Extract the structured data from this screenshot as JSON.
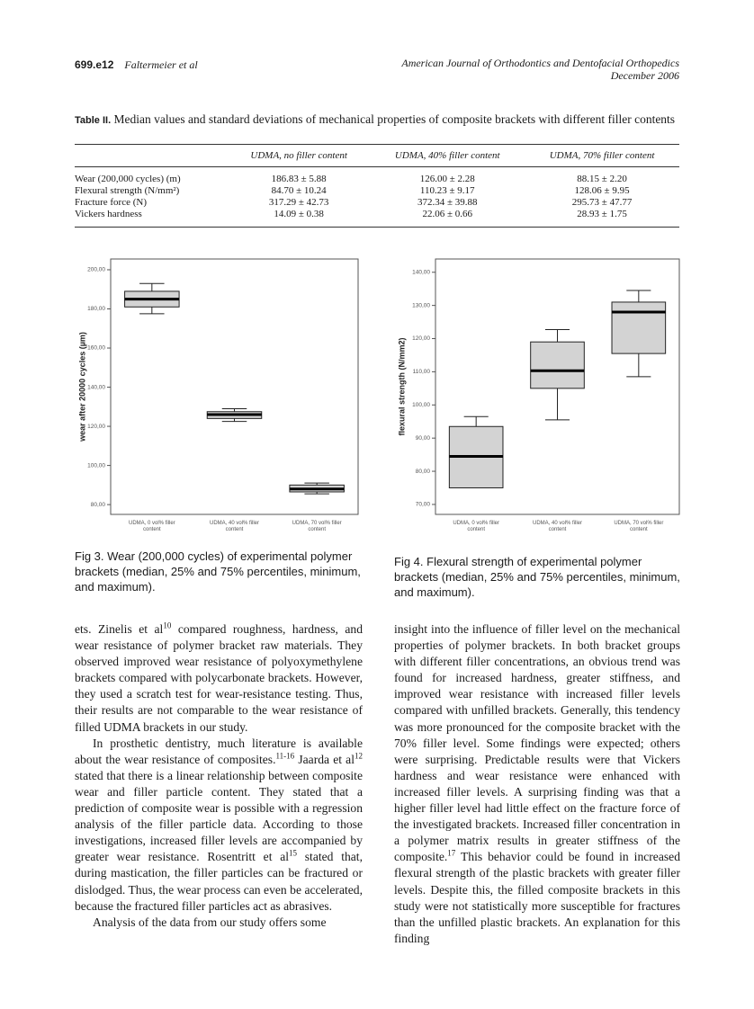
{
  "header": {
    "page": "699.e12",
    "authors": "Faltermeier et al",
    "journal": "American Journal of Orthodontics and Dentofacial Orthopedics",
    "date": "December 2006"
  },
  "table": {
    "label": "Table II.",
    "title": "Median values and standard deviations of mechanical properties of composite brackets with different filler contents",
    "columns": [
      "UDMA, no filler content",
      "UDMA, 40% filler content",
      "UDMA, 70% filler content"
    ],
    "rows": [
      {
        "label": "Wear (200,000 cycles) (m)",
        "cells": [
          "186.83 ± 5.88",
          "126.00 ± 2.28",
          "88.15 ± 2.20"
        ]
      },
      {
        "label": "Flexural strength (N/mm²)",
        "cells": [
          "84.70 ± 10.24",
          "110.23 ± 9.17",
          "128.06 ± 9.95"
        ]
      },
      {
        "label": "Fracture force (N)",
        "cells": [
          "317.29 ± 42.73",
          "372.34 ± 39.88",
          "295.73 ± 47.77"
        ]
      },
      {
        "label": "Vickers hardness",
        "cells": [
          "14.09 ± 0.38",
          "22.06 ± 0.66",
          "28.93 ± 1.75"
        ]
      }
    ]
  },
  "chart_data": [
    {
      "type": "box",
      "ylabel": "wear after 20000 cycles (µm)",
      "box_color": "#d3d3d3",
      "categories": [
        [
          "UDMA, 0 vol% filler",
          "content"
        ],
        [
          "UDMA, 40 vol% filler",
          "content"
        ],
        [
          "UDMA, 70 vol% filler",
          "content"
        ]
      ],
      "boxes": [
        {
          "min": 177.5,
          "q1": 181,
          "median": 185,
          "q3": 189,
          "max": 193
        },
        {
          "min": 122.5,
          "q1": 124,
          "median": 126,
          "q3": 127.5,
          "max": 129
        },
        {
          "min": 85.5,
          "q1": 86.5,
          "median": 88,
          "q3": 90,
          "max": 91
        }
      ],
      "ylim": [
        75,
        205.5
      ],
      "yticks": [
        {
          "value": 80,
          "label": "80,00"
        },
        {
          "value": 100,
          "label": "100,00"
        },
        {
          "value": 120,
          "label": "120,00"
        },
        {
          "value": 140,
          "label": "140,00"
        },
        {
          "value": 160,
          "label": "160,00"
        },
        {
          "value": 180,
          "label": "180,00"
        },
        {
          "value": 200,
          "label": "200,00"
        }
      ]
    },
    {
      "type": "box",
      "ylabel": "flexural strength (N/mm2)",
      "box_color": "#d3d3d3",
      "categories": [
        [
          "UDMA, 0 vol% filler",
          "content"
        ],
        [
          "UDMA, 40 vol% filler",
          "content"
        ],
        [
          "UDMA, 70 vol% filler",
          "content"
        ]
      ],
      "boxes": [
        {
          "min": 75,
          "q1": 75,
          "median": 84.5,
          "q3": 93.5,
          "max": 96.5
        },
        {
          "min": 95.5,
          "q1": 105,
          "median": 110.3,
          "q3": 119,
          "max": 122.7
        },
        {
          "min": 108.5,
          "q1": 115.5,
          "median": 128,
          "q3": 131,
          "max": 134.5
        }
      ],
      "ylim": [
        67,
        144
      ],
      "yticks": [
        {
          "value": 70,
          "label": "70,00"
        },
        {
          "value": 80,
          "label": "80,00"
        },
        {
          "value": 90,
          "label": "90,00"
        },
        {
          "value": 100,
          "label": "100,00"
        },
        {
          "value": 110,
          "label": "110,00"
        },
        {
          "value": 120,
          "label": "120,00"
        },
        {
          "value": 130,
          "label": "130,00"
        },
        {
          "value": 140,
          "label": "140,00"
        }
      ]
    }
  ],
  "figures": [
    {
      "label": "Fig 3.",
      "caption": "Wear (200,000 cycles) of experimental polymer brackets (median, 25% and 75% percentiles, minimum, and maximum)."
    },
    {
      "label": "Fig 4.",
      "caption": "Flexural strength of experimental polymer brackets (median, 25% and 75% percentiles, minimum, and maximum)."
    }
  ],
  "body": [
    [
      {
        "parts": [
          {
            "text": "ets. Zinelis et al"
          },
          {
            "sup": "10"
          },
          {
            "text": " compared roughness, hardness, and wear resistance of polymer bracket raw materials. They observed improved wear resistance of polyoxymethylene brackets compared with polycarbonate brackets. However, they used a scratch test for wear-resistance testing. Thus, their results are not comparable to the wear resistance of filled UDMA brackets in our study."
          }
        ]
      },
      {
        "parts": [
          {
            "text": "In prosthetic dentistry, much literature is available about the wear resistance of composites."
          },
          {
            "sup": "11-16"
          },
          {
            "text": " Jaarda et al"
          },
          {
            "sup": "12"
          },
          {
            "text": " stated that there is a linear relationship between composite wear and filler particle content. They stated that a prediction of composite wear is possible with a regression analysis of the filler particle data. According to those investigations, increased filler levels are accompanied by greater wear resistance. Rosentritt et al"
          },
          {
            "sup": "15"
          },
          {
            "text": " stated that, during mastication, the filler particles can be fractured or dislodged. Thus, the wear process can even be accelerated, because the fractured filler particles act as abrasives."
          }
        ]
      },
      {
        "parts": [
          {
            "text": "Analysis of the data from our study offers some"
          }
        ]
      }
    ],
    [
      {
        "parts": [
          {
            "text": "insight into the influence of filler level on the mechanical properties of polymer brackets. In both bracket groups with different filler concentrations, an obvious trend was found for increased hardness, greater stiffness, and improved wear resistance with increased filler levels compared with unfilled brackets. Generally, this tendency was more pronounced for the composite bracket with the 70% filler level. Some findings were expected; others were surprising. Predictable results were that Vickers hardness and wear resistance were enhanced with increased filler levels. A surprising finding was that a higher filler level had little effect on the fracture force of the investigated brackets. Increased filler concentration in a polymer matrix results in greater stiffness of the composite."
          },
          {
            "sup": "17"
          },
          {
            "text": " This behavior could be found in increased flexural strength of the plastic brackets with greater filler levels. Despite this, the filled composite brackets in this study were not statistically more susceptible for fractures than the unfilled plastic brackets. An explanation for this finding"
          }
        ]
      }
    ]
  ]
}
